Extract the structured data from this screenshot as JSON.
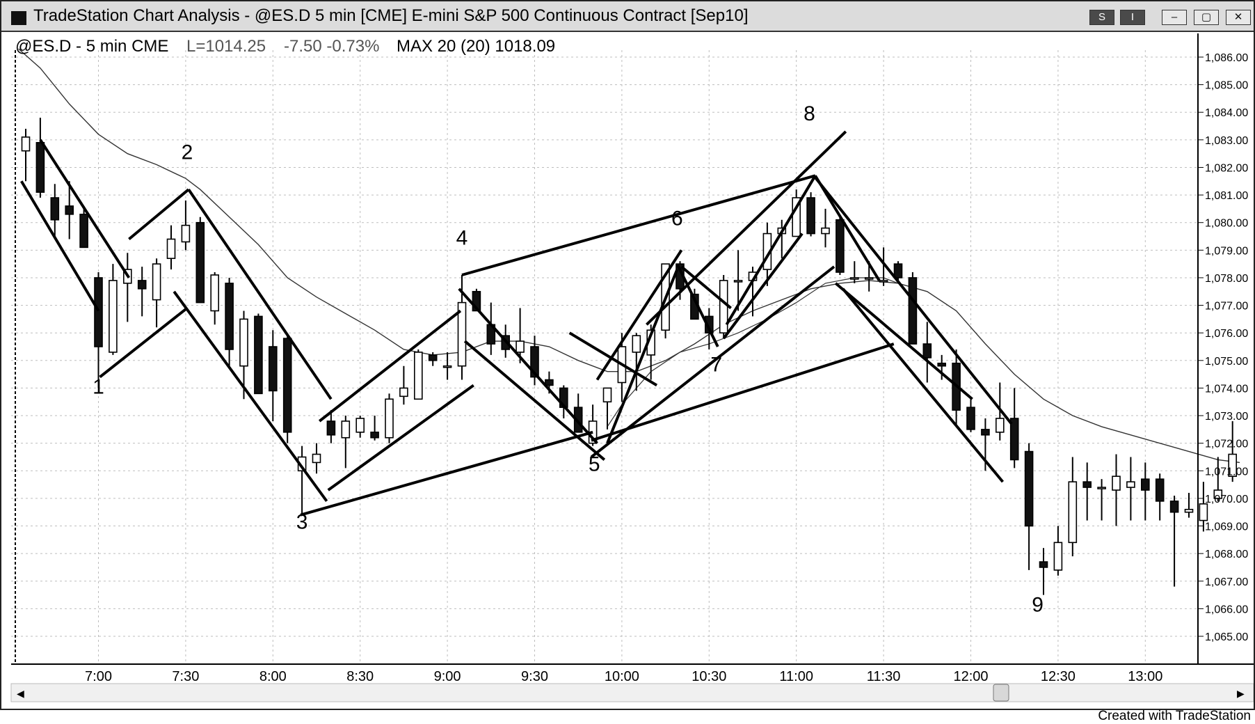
{
  "window": {
    "title": "TradeStation Chart Analysis - @ES.D 5 min [CME] E-mini S&P 500 Continuous Contract [Sep10]",
    "buttons": {
      "s_label": "S",
      "i_label": "I",
      "min_label": "–",
      "max_label": "▢",
      "close_label": "✕"
    }
  },
  "header": {
    "symbol": "@ES.D - 5 min CME",
    "last": "L=1014.25",
    "change": "-7.50 -0.73%",
    "indicator": "MAX 20 (20) 1018.09"
  },
  "footer_note": "Created with TradeStation",
  "colors": {
    "bull_fill": "#ffffff",
    "bear_fill": "#111111",
    "grid": "#bdbdbd",
    "ma_line": "#333333"
  },
  "chart_data": {
    "type": "candlestick",
    "bar_interval_minutes": 5,
    "yticks": [
      "1,065.00",
      "1,066.00",
      "1,067.00",
      "1,068.00",
      "1,069.00",
      "1,070.00",
      "1,071.00",
      "1,072.00",
      "1,073.00",
      "1,074.00",
      "1,075.00",
      "1,076.00",
      "1,077.00",
      "1,078.00",
      "1,079.00",
      "1,080.00",
      "1,081.00",
      "1,082.00",
      "1,083.00",
      "1,084.00",
      "1,085.00",
      "1,086.00"
    ],
    "ylim": [
      1064.1,
      1086.4
    ],
    "xticks": [
      "7:00",
      "7:30",
      "8:00",
      "8:30",
      "9:00",
      "9:30",
      "10:00",
      "10:30",
      "11:00",
      "11:30",
      "12:00",
      "12:30",
      "13:00"
    ],
    "xticks_bar_index": [
      5,
      11,
      17,
      23,
      29,
      35,
      41,
      47,
      53,
      59,
      65,
      71,
      77
    ],
    "candles": [
      {
        "t": "6:35",
        "o": 1082.6,
        "h": 1083.4,
        "l": 1081.5,
        "c": 1083.1
      },
      {
        "t": "6:40",
        "o": 1082.9,
        "h": 1083.8,
        "l": 1080.9,
        "c": 1081.1
      },
      {
        "t": "6:45",
        "o": 1080.9,
        "h": 1081.4,
        "l": 1079.4,
        "c": 1080.1
      },
      {
        "t": "6:50",
        "o": 1080.6,
        "h": 1081.5,
        "l": 1079.4,
        "c": 1080.3
      },
      {
        "t": "6:55",
        "o": 1080.3,
        "h": 1080.6,
        "l": 1079.1,
        "c": 1079.1
      },
      {
        "t": "7:00",
        "o": 1078.0,
        "h": 1078.2,
        "l": 1074.0,
        "c": 1075.5
      },
      {
        "t": "7:05",
        "o": 1075.3,
        "h": 1078.5,
        "l": 1075.2,
        "c": 1077.9
      },
      {
        "t": "7:10",
        "o": 1077.8,
        "h": 1078.9,
        "l": 1076.4,
        "c": 1078.3
      },
      {
        "t": "7:15",
        "o": 1077.9,
        "h": 1078.4,
        "l": 1076.6,
        "c": 1077.6
      },
      {
        "t": "7:20",
        "o": 1077.2,
        "h": 1078.7,
        "l": 1076.2,
        "c": 1078.5
      },
      {
        "t": "7:25",
        "o": 1078.7,
        "h": 1079.9,
        "l": 1078.3,
        "c": 1079.4
      },
      {
        "t": "7:30",
        "o": 1079.3,
        "h": 1080.8,
        "l": 1079.0,
        "c": 1079.9
      },
      {
        "t": "7:35",
        "o": 1080.0,
        "h": 1080.2,
        "l": 1077.1,
        "c": 1077.1
      },
      {
        "t": "7:40",
        "o": 1076.8,
        "h": 1078.2,
        "l": 1076.3,
        "c": 1078.1
      },
      {
        "t": "7:45",
        "o": 1077.8,
        "h": 1078.0,
        "l": 1074.8,
        "c": 1075.4
      },
      {
        "t": "7:50",
        "o": 1074.8,
        "h": 1076.8,
        "l": 1073.6,
        "c": 1076.5
      },
      {
        "t": "7:55",
        "o": 1076.6,
        "h": 1076.7,
        "l": 1073.8,
        "c": 1073.8
      },
      {
        "t": "8:00",
        "o": 1075.5,
        "h": 1076.1,
        "l": 1072.8,
        "c": 1073.9
      },
      {
        "t": "8:05",
        "o": 1075.8,
        "h": 1075.9,
        "l": 1072.0,
        "c": 1072.4
      },
      {
        "t": "8:10",
        "o": 1071.0,
        "h": 1071.9,
        "l": 1069.4,
        "c": 1071.5
      },
      {
        "t": "8:15",
        "o": 1071.3,
        "h": 1072.0,
        "l": 1070.9,
        "c": 1071.6
      },
      {
        "t": "8:20",
        "o": 1072.8,
        "h": 1073.2,
        "l": 1072.0,
        "c": 1072.3
      },
      {
        "t": "8:25",
        "o": 1072.2,
        "h": 1073.0,
        "l": 1071.1,
        "c": 1072.8
      },
      {
        "t": "8:30",
        "o": 1072.4,
        "h": 1073.0,
        "l": 1072.2,
        "c": 1072.9
      },
      {
        "t": "8:35",
        "o": 1072.4,
        "h": 1073.0,
        "l": 1072.1,
        "c": 1072.2
      },
      {
        "t": "8:40",
        "o": 1072.2,
        "h": 1073.8,
        "l": 1072.0,
        "c": 1073.6
      },
      {
        "t": "8:45",
        "o": 1073.7,
        "h": 1074.8,
        "l": 1073.4,
        "c": 1074.0
      },
      {
        "t": "8:50",
        "o": 1073.6,
        "h": 1075.4,
        "l": 1073.6,
        "c": 1075.3
      },
      {
        "t": "8:55",
        "o": 1075.2,
        "h": 1075.3,
        "l": 1074.8,
        "c": 1075.0
      },
      {
        "t": "9:00",
        "o": 1074.8,
        "h": 1075.3,
        "l": 1074.3,
        "c": 1074.8
      },
      {
        "t": "9:05",
        "o": 1074.8,
        "h": 1078.1,
        "l": 1074.3,
        "c": 1077.1
      },
      {
        "t": "9:10",
        "o": 1077.5,
        "h": 1077.6,
        "l": 1076.8,
        "c": 1076.8
      },
      {
        "t": "9:15",
        "o": 1076.3,
        "h": 1077.1,
        "l": 1075.2,
        "c": 1075.6
      },
      {
        "t": "9:20",
        "o": 1075.9,
        "h": 1076.3,
        "l": 1075.1,
        "c": 1075.4
      },
      {
        "t": "9:25",
        "o": 1075.3,
        "h": 1076.9,
        "l": 1074.9,
        "c": 1075.7
      },
      {
        "t": "9:30",
        "o": 1075.5,
        "h": 1075.9,
        "l": 1074.1,
        "c": 1074.4
      },
      {
        "t": "9:35",
        "o": 1074.3,
        "h": 1074.6,
        "l": 1073.8,
        "c": 1074.1
      },
      {
        "t": "9:40",
        "o": 1074.0,
        "h": 1074.1,
        "l": 1072.9,
        "c": 1073.3
      },
      {
        "t": "9:45",
        "o": 1073.3,
        "h": 1073.8,
        "l": 1072.4,
        "c": 1072.4
      },
      {
        "t": "9:50",
        "o": 1072.0,
        "h": 1073.4,
        "l": 1071.9,
        "c": 1072.8
      },
      {
        "t": "9:55",
        "o": 1073.5,
        "h": 1074.0,
        "l": 1072.5,
        "c": 1074.0
      },
      {
        "t": "10:00",
        "o": 1074.2,
        "h": 1076.0,
        "l": 1073.5,
        "c": 1075.5
      },
      {
        "t": "10:05",
        "o": 1075.3,
        "h": 1076.0,
        "l": 1073.9,
        "c": 1075.9
      },
      {
        "t": "10:10",
        "o": 1075.2,
        "h": 1076.3,
        "l": 1074.3,
        "c": 1076.1
      },
      {
        "t": "10:15",
        "o": 1076.1,
        "h": 1078.5,
        "l": 1075.8,
        "c": 1078.5
      },
      {
        "t": "10:20",
        "o": 1078.5,
        "h": 1078.6,
        "l": 1077.2,
        "c": 1077.6
      },
      {
        "t": "10:25",
        "o": 1077.4,
        "h": 1077.6,
        "l": 1076.5,
        "c": 1076.5
      },
      {
        "t": "10:30",
        "o": 1076.6,
        "h": 1076.9,
        "l": 1075.4,
        "c": 1076.0
      },
      {
        "t": "10:35",
        "o": 1076.0,
        "h": 1078.1,
        "l": 1075.8,
        "c": 1077.9
      },
      {
        "t": "10:40",
        "o": 1077.9,
        "h": 1079.0,
        "l": 1076.8,
        "c": 1077.9
      },
      {
        "t": "10:45",
        "o": 1077.9,
        "h": 1078.4,
        "l": 1076.6,
        "c": 1078.2
      },
      {
        "t": "10:50",
        "o": 1078.3,
        "h": 1080.0,
        "l": 1077.7,
        "c": 1079.6
      },
      {
        "t": "10:55",
        "o": 1079.6,
        "h": 1080.1,
        "l": 1078.7,
        "c": 1079.8
      },
      {
        "t": "11:00",
        "o": 1079.5,
        "h": 1081.2,
        "l": 1079.5,
        "c": 1080.9
      },
      {
        "t": "11:05",
        "o": 1080.9,
        "h": 1081.1,
        "l": 1079.5,
        "c": 1079.6
      },
      {
        "t": "11:10",
        "o": 1079.6,
        "h": 1080.5,
        "l": 1079.1,
        "c": 1079.8
      },
      {
        "t": "11:15",
        "o": 1080.1,
        "h": 1080.2,
        "l": 1078.1,
        "c": 1078.2
      },
      {
        "t": "11:20",
        "o": 1078.0,
        "h": 1078.6,
        "l": 1077.8,
        "c": 1078.0
      },
      {
        "t": "11:25",
        "o": 1078.0,
        "h": 1078.6,
        "l": 1077.5,
        "c": 1078.0
      },
      {
        "t": "11:30",
        "o": 1077.9,
        "h": 1079.1,
        "l": 1077.7,
        "c": 1077.9
      },
      {
        "t": "11:35",
        "o": 1078.5,
        "h": 1078.6,
        "l": 1077.8,
        "c": 1078.0
      },
      {
        "t": "11:40",
        "o": 1078.0,
        "h": 1078.2,
        "l": 1075.6,
        "c": 1075.6
      },
      {
        "t": "11:45",
        "o": 1075.6,
        "h": 1076.4,
        "l": 1074.2,
        "c": 1075.1
      },
      {
        "t": "11:50",
        "o": 1074.9,
        "h": 1075.2,
        "l": 1074.3,
        "c": 1074.8
      },
      {
        "t": "11:55",
        "o": 1074.9,
        "h": 1075.4,
        "l": 1072.6,
        "c": 1073.2
      },
      {
        "t": "12:00",
        "o": 1073.3,
        "h": 1073.6,
        "l": 1072.4,
        "c": 1072.5
      },
      {
        "t": "12:05",
        "o": 1072.5,
        "h": 1072.9,
        "l": 1071.0,
        "c": 1072.3
      },
      {
        "t": "12:10",
        "o": 1072.4,
        "h": 1074.2,
        "l": 1072.1,
        "c": 1072.9
      },
      {
        "t": "12:15",
        "o": 1072.9,
        "h": 1074.0,
        "l": 1071.1,
        "c": 1071.4
      },
      {
        "t": "12:20",
        "o": 1071.7,
        "h": 1072.0,
        "l": 1067.4,
        "c": 1069.0
      },
      {
        "t": "12:25",
        "o": 1067.7,
        "h": 1068.2,
        "l": 1066.5,
        "c": 1067.5
      },
      {
        "t": "12:30",
        "o": 1067.4,
        "h": 1069.0,
        "l": 1067.2,
        "c": 1068.4
      },
      {
        "t": "12:35",
        "o": 1068.4,
        "h": 1071.5,
        "l": 1067.9,
        "c": 1070.6
      },
      {
        "t": "12:40",
        "o": 1070.6,
        "h": 1071.3,
        "l": 1069.2,
        "c": 1070.4
      },
      {
        "t": "12:45",
        "o": 1070.4,
        "h": 1070.7,
        "l": 1069.2,
        "c": 1070.4
      },
      {
        "t": "12:50",
        "o": 1070.3,
        "h": 1071.6,
        "l": 1069.0,
        "c": 1070.8
      },
      {
        "t": "12:55",
        "o": 1070.4,
        "h": 1071.5,
        "l": 1069.2,
        "c": 1070.6
      },
      {
        "t": "13:00",
        "o": 1070.7,
        "h": 1071.3,
        "l": 1069.2,
        "c": 1070.3
      },
      {
        "t": "13:05",
        "o": 1070.7,
        "h": 1070.9,
        "l": 1069.2,
        "c": 1069.9
      },
      {
        "t": "13:10",
        "o": 1069.9,
        "h": 1070.1,
        "l": 1066.8,
        "c": 1069.5
      },
      {
        "t": "13:15",
        "o": 1069.5,
        "h": 1070.2,
        "l": 1069.3,
        "c": 1069.6
      },
      {
        "t": "13:20",
        "o": 1069.2,
        "h": 1070.6,
        "l": 1068.8,
        "c": 1069.8
      },
      {
        "t": "13:25",
        "o": 1070.0,
        "h": 1071.5,
        "l": 1069.9,
        "c": 1070.3
      },
      {
        "t": "13:30",
        "o": 1070.8,
        "h": 1072.8,
        "l": 1070.6,
        "c": 1071.6
      }
    ],
    "ma_series": [
      [
        -0.5,
        1086.3
      ],
      [
        1,
        1085.6
      ],
      [
        3,
        1084.3
      ],
      [
        5,
        1083.2
      ],
      [
        7,
        1082.5
      ],
      [
        9,
        1082.1
      ],
      [
        11,
        1081.6
      ],
      [
        12,
        1081.2
      ],
      [
        14,
        1080.2
      ],
      [
        16,
        1079.2
      ],
      [
        18,
        1078.0
      ],
      [
        20,
        1077.3
      ],
      [
        22,
        1076.7
      ],
      [
        24,
        1076.1
      ],
      [
        26,
        1075.4
      ],
      [
        28,
        1075.2
      ],
      [
        30,
        1075.3
      ],
      [
        32,
        1075.7
      ],
      [
        34,
        1075.7
      ],
      [
        36,
        1075.5
      ],
      [
        38,
        1075.0
      ],
      [
        40,
        1074.6
      ],
      [
        42,
        1074.6
      ],
      [
        44,
        1075.0
      ],
      [
        46,
        1075.6
      ],
      [
        48,
        1076.3
      ],
      [
        50,
        1076.8
      ],
      [
        52,
        1077.2
      ],
      [
        54,
        1077.6
      ],
      [
        56,
        1077.8
      ],
      [
        58,
        1077.9
      ],
      [
        60,
        1077.8
      ],
      [
        62,
        1077.5
      ],
      [
        64,
        1076.8
      ],
      [
        66,
        1075.6
      ],
      [
        68,
        1074.5
      ],
      [
        70,
        1073.6
      ],
      [
        72,
        1073.0
      ],
      [
        74,
        1072.6
      ],
      [
        76,
        1072.3
      ],
      [
        78,
        1072.0
      ],
      [
        80,
        1071.7
      ],
      [
        82,
        1071.4
      ],
      [
        83.5,
        1071.3
      ]
    ],
    "ma_series_2": [
      [
        40,
        1072.6
      ],
      [
        41,
        1073.4
      ],
      [
        43,
        1074.6
      ],
      [
        45,
        1075.3
      ],
      [
        47,
        1075.6
      ],
      [
        49,
        1076.0
      ],
      [
        51,
        1076.5
      ],
      [
        53,
        1077.1
      ],
      [
        55,
        1077.8
      ],
      [
        57,
        1078.0
      ],
      [
        59,
        1078.0
      ],
      [
        60,
        1077.8
      ]
    ],
    "trendlines": [
      [
        [
          -0.3,
          1081.5
        ],
        [
          5.0,
          1076.8
        ]
      ],
      [
        [
          1.0,
          1083.0
        ],
        [
          7.1,
          1078.0
        ]
      ],
      [
        [
          5.1,
          1074.4
        ],
        [
          11.1,
          1076.9
        ]
      ],
      [
        [
          7.1,
          1079.4
        ],
        [
          11.2,
          1081.2
        ]
      ],
      [
        [
          11.2,
          1081.2
        ],
        [
          21.0,
          1073.6
        ]
      ],
      [
        [
          10.2,
          1077.5
        ],
        [
          20.7,
          1069.9
        ]
      ],
      [
        [
          18.9,
          1069.4
        ],
        [
          39.0,
          1072.4
        ]
      ],
      [
        [
          20.8,
          1070.3
        ],
        [
          30.8,
          1074.1
        ]
      ],
      [
        [
          20.2,
          1072.8
        ],
        [
          29.9,
          1076.8
        ]
      ],
      [
        [
          30.0,
          1078.1
        ],
        [
          54.3,
          1081.7
        ]
      ],
      [
        [
          29.8,
          1077.6
        ],
        [
          39.3,
          1072.0
        ]
      ],
      [
        [
          30.2,
          1075.7
        ],
        [
          39.8,
          1071.4
        ]
      ],
      [
        [
          39.3,
          1074.3
        ],
        [
          45.1,
          1079.0
        ]
      ],
      [
        [
          40.0,
          1072.0
        ],
        [
          44.8,
          1078.3
        ]
      ],
      [
        [
          38.9,
          1072.1
        ],
        [
          59.7,
          1075.6
        ]
      ],
      [
        [
          38.9,
          1071.5
        ],
        [
          55.6,
          1078.4
        ]
      ],
      [
        [
          45.1,
          1078.4
        ],
        [
          48.5,
          1076.9
        ]
      ],
      [
        [
          44.8,
          1078.5
        ],
        [
          47.6,
          1075.5
        ]
      ],
      [
        [
          48.2,
          1076.3
        ],
        [
          54.3,
          1081.7
        ]
      ],
      [
        [
          48.0,
          1075.8
        ],
        [
          53.4,
          1079.6
        ]
      ],
      [
        [
          54.3,
          1081.7
        ],
        [
          58.7,
          1077.9
        ]
      ],
      [
        [
          55.7,
          1077.8
        ],
        [
          65.1,
          1073.6
        ]
      ],
      [
        [
          54.2,
          1081.7
        ],
        [
          67.8,
          1072.7
        ]
      ],
      [
        [
          56.2,
          1077.6
        ],
        [
          67.2,
          1070.6
        ]
      ],
      [
        [
          37.4,
          1076.0
        ],
        [
          43.4,
          1074.1
        ]
      ],
      [
        [
          42.7,
          1076.3
        ],
        [
          56.4,
          1083.3
        ]
      ]
    ],
    "wave_labels": [
      {
        "text": "1",
        "bar": 5.0,
        "price": 1073.8
      },
      {
        "text": "2",
        "bar": 11.1,
        "price": 1082.3
      },
      {
        "text": "3",
        "bar": 19.0,
        "price": 1068.9
      },
      {
        "text": "4",
        "bar": 30.0,
        "price": 1079.2
      },
      {
        "text": "5",
        "bar": 39.1,
        "price": 1071.0
      },
      {
        "text": "6",
        "bar": 44.8,
        "price": 1079.9
      },
      {
        "text": "7",
        "bar": 47.5,
        "price": 1074.6
      },
      {
        "text": "8",
        "bar": 53.9,
        "price": 1083.7
      },
      {
        "text": "9",
        "bar": 69.6,
        "price": 1065.9
      }
    ]
  }
}
